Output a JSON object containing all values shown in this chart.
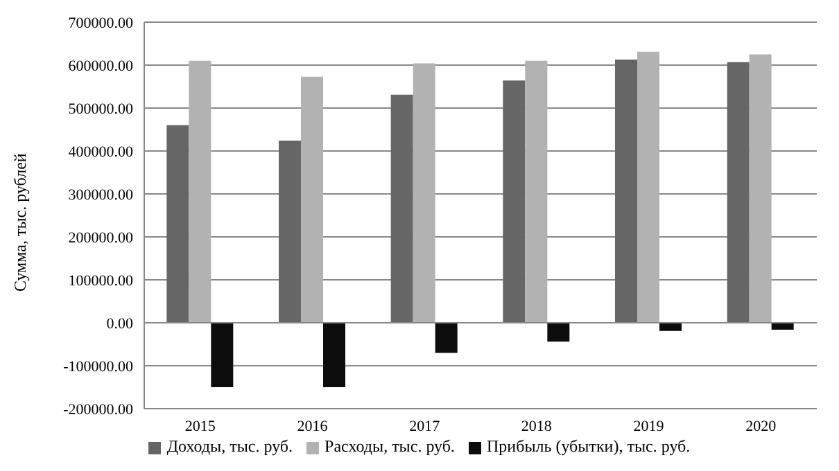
{
  "chart_data": {
    "type": "bar",
    "ylabel": "Сумма, тыс. рублей",
    "categories": [
      "2015",
      "2016",
      "2017",
      "2018",
      "2019",
      "2020"
    ],
    "series": [
      {
        "name": "Доходы, тыс. руб.",
        "color": "#666666",
        "values": [
          460000,
          424000,
          531000,
          564000,
          613000,
          607000
        ]
      },
      {
        "name": "Расходы, тыс. руб.",
        "color": "#b2b2b2",
        "values": [
          610000,
          573000,
          604000,
          610000,
          631000,
          625000
        ]
      },
      {
        "name": "Прибыль (убытки), тыс. руб.",
        "color": "#0d0d0d",
        "values": [
          -150000,
          -150000,
          -70000,
          -44000,
          -19000,
          -16000
        ]
      }
    ],
    "ylim": [
      -200000,
      700000
    ],
    "yticks": [
      {
        "value": -200000,
        "label": "-200000.00"
      },
      {
        "value": -100000,
        "label": "-100000.00"
      },
      {
        "value": 0,
        "label": "0.00"
      },
      {
        "value": 100000,
        "label": "100000.00"
      },
      {
        "value": 200000,
        "label": "200000.00"
      },
      {
        "value": 300000,
        "label": "300000.00"
      },
      {
        "value": 400000,
        "label": "400000.00"
      },
      {
        "value": 500000,
        "label": "500000.00"
      },
      {
        "value": 600000,
        "label": "600000.00"
      },
      {
        "value": 700000,
        "label": "700000.00"
      }
    ],
    "grid": "y",
    "legend": "bottom"
  }
}
